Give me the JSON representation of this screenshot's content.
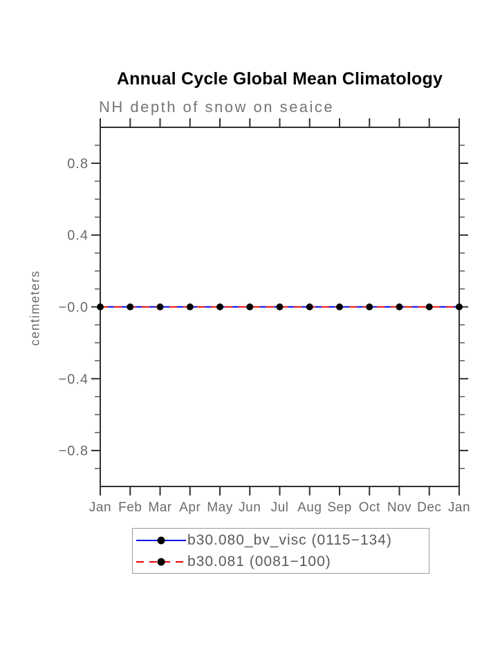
{
  "chart_data": {
    "type": "line",
    "title": "Annual Cycle Global Mean Climatology",
    "subtitle": "NH depth of snow on seaice",
    "ylabel": "centimeters",
    "xlabel": "",
    "x_categories": [
      "Jan",
      "Feb",
      "Mar",
      "Apr",
      "May",
      "Jun",
      "Jul",
      "Aug",
      "Sep",
      "Oct",
      "Nov",
      "Dec",
      "Jan"
    ],
    "ylim": [
      -1.0,
      1.0
    ],
    "y_major_ticks": [
      {
        "value": 0.8,
        "label": "0.8"
      },
      {
        "value": 0.4,
        "label": "0.4"
      },
      {
        "value": 0.0,
        "label": "−0.0"
      },
      {
        "value": -0.4,
        "label": "−0.4"
      },
      {
        "value": -0.8,
        "label": "−0.8"
      }
    ],
    "y_minor_step": 0.1,
    "grid": false,
    "legend_position": "bottom",
    "series": [
      {
        "name": "b30.080_bv_visc (0115−134)",
        "color": "#0000ee",
        "line_style": "solid",
        "marker": "black-dot",
        "values": [
          0,
          0,
          0,
          0,
          0,
          0,
          0,
          0,
          0,
          0,
          0,
          0,
          0
        ]
      },
      {
        "name": "b30.081 (0081−100)",
        "color": "#ee0000",
        "line_style": "dashed",
        "marker": "black-dot",
        "values": [
          0,
          0,
          0,
          0,
          0,
          0,
          0,
          0,
          0,
          0,
          0,
          0,
          0
        ]
      }
    ],
    "colors": {
      "frame": "#2f2f2f",
      "tick_label": "#6a6a6a",
      "marker": "#000000"
    }
  }
}
